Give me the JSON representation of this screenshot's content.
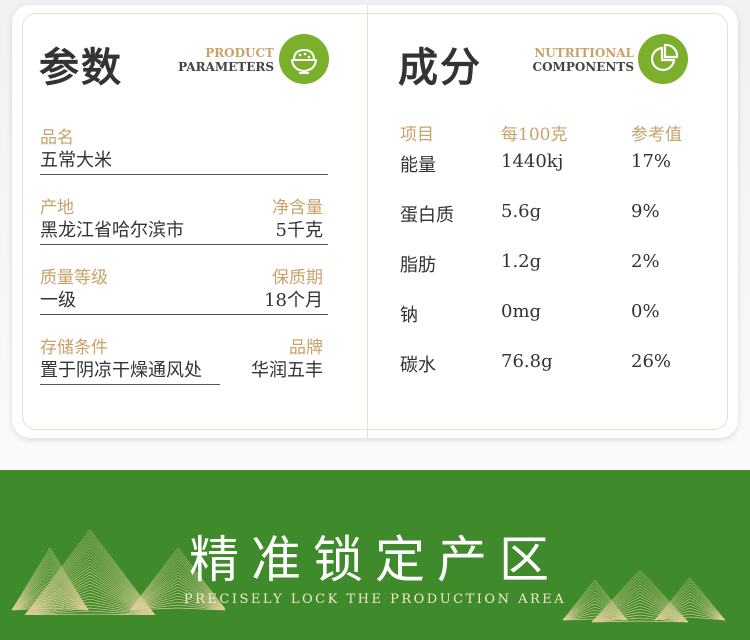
{
  "params": {
    "title": "参数",
    "en_line1": "PRODUCT",
    "en_line2": "PARAMETERS",
    "icon": "rice-bowl-icon",
    "rows": [
      {
        "left_label": "品名",
        "left_value": "五常大米",
        "right_label": "",
        "right_value": ""
      },
      {
        "left_label": "产地",
        "left_value": "黑龙江省哈尔滨市",
        "right_label": "净含量",
        "right_value": "5千克"
      },
      {
        "left_label": "质量等级",
        "left_value": "一级",
        "right_label": "保质期",
        "right_value": "18个月"
      },
      {
        "left_label": "存储条件",
        "left_value": "置于阴凉干燥通风处",
        "right_label": "品牌",
        "right_value": "华润五丰"
      }
    ]
  },
  "nutrition": {
    "title": "成分",
    "en_line1": "NUTRITIONAL",
    "en_line2": "COMPONENTS",
    "icon": "pie-chart-icon",
    "headers": [
      "项目",
      "每100克",
      "参考值"
    ],
    "rows": [
      [
        "能量",
        "1440kj",
        "17%"
      ],
      [
        "蛋白质",
        "5.6g",
        "9%"
      ],
      [
        "脂肪",
        "1.2g",
        "2%"
      ],
      [
        "钠",
        "0mg",
        "0%"
      ],
      [
        "碳水",
        "76.8g",
        "26%"
      ]
    ]
  },
  "banner": {
    "title": "精准锁定产区",
    "subtitle": "PRECISELY LOCK THE PRODUCTION AREA"
  },
  "colors": {
    "accent_green": "#7cb02c",
    "banner_green": "#3f8a2a",
    "label_gold": "#c9a26a"
  }
}
